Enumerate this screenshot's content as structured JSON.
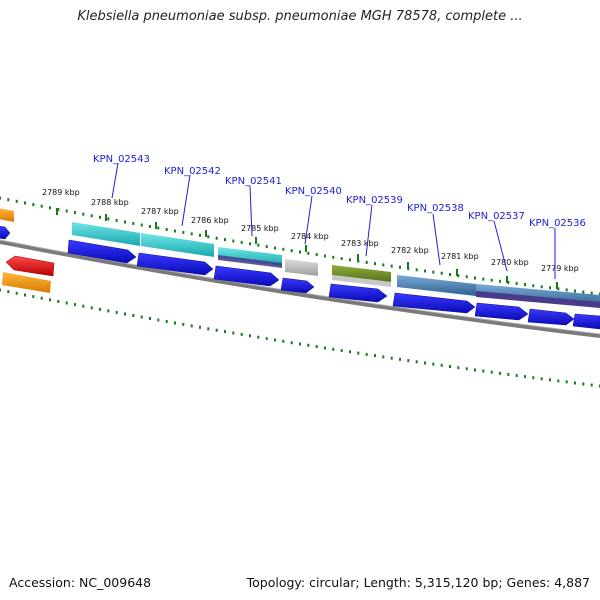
{
  "title": "Klebsiella pneumoniae subsp. pneumoniae MGH 78578, complete ...",
  "footer": {
    "accession": "Accession: NC_009648",
    "topology": "Topology: circular; Length: 5,315,120 bp; Genes: 4,887"
  },
  "ticks": [
    "2789 kbp",
    "2788 kbp",
    "2787 kbp",
    "2786 kbp",
    "2785 kbp",
    "2784 kbp",
    "2783 kbp",
    "2782 kbp",
    "2781 kbp",
    "2780 kbp",
    "2779 kbp"
  ],
  "genes": [
    "KPN_02543",
    "KPN_02542",
    "KPN_02541",
    "KPN_02540",
    "KPN_02539",
    "KPN_02538",
    "KPN_02537",
    "KPN_02536"
  ],
  "colors": {
    "cds": "#1010e0",
    "backbone": "#7a7a7a",
    "gc_dots": "#1b7a1b",
    "cyan": "#22c4c8",
    "steel": "#4a82b4",
    "olive": "#6f8a28",
    "gray": "#bdbdbd",
    "purple": "#4a3a8a",
    "red": "#e01010",
    "orange": "#f29000",
    "label": "#1f22d4"
  }
}
